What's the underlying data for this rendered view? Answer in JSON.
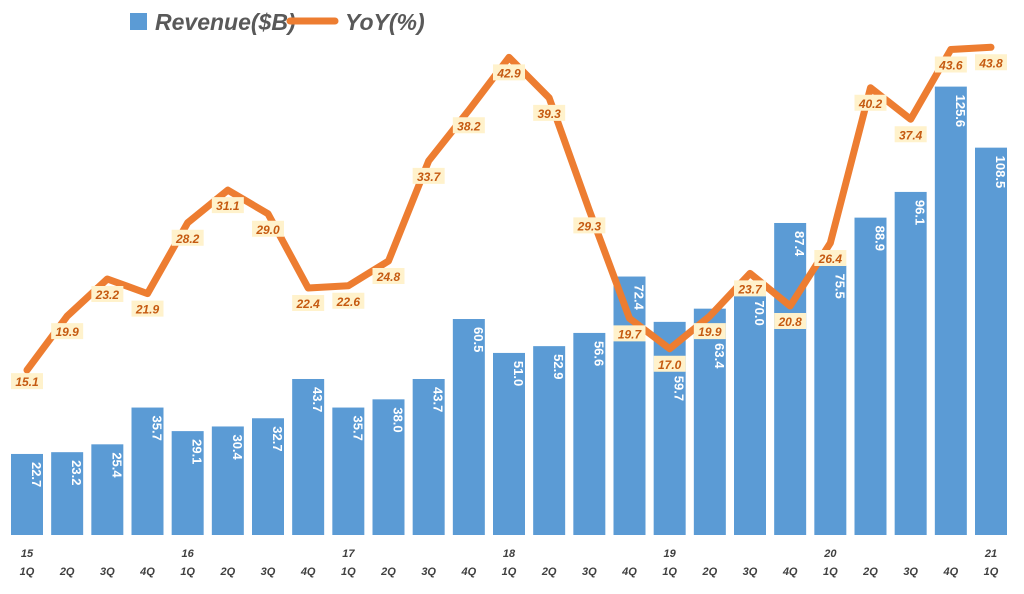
{
  "chart_data": {
    "type": "bar+line",
    "categories": [
      "15 1Q",
      "2Q",
      "3Q",
      "4Q",
      "16 1Q",
      "2Q",
      "3Q",
      "4Q",
      "17 1Q",
      "2Q",
      "3Q",
      "4Q",
      "18 1Q",
      "2Q",
      "3Q",
      "4Q",
      "19 1Q",
      "2Q",
      "3Q",
      "4Q",
      "20 1Q",
      "2Q",
      "3Q",
      "4Q",
      "21 1Q"
    ],
    "x_years": [
      "15",
      "",
      "",
      "",
      "16",
      "",
      "",
      "",
      "17",
      "",
      "",
      "",
      "18",
      "",
      "",
      "",
      "19",
      "",
      "",
      "",
      "20",
      "",
      "",
      "",
      "21"
    ],
    "x_quarters": [
      "1Q",
      "2Q",
      "3Q",
      "4Q",
      "1Q",
      "2Q",
      "3Q",
      "4Q",
      "1Q",
      "2Q",
      "3Q",
      "4Q",
      "1Q",
      "2Q",
      "3Q",
      "4Q",
      "1Q",
      "2Q",
      "3Q",
      "4Q",
      "1Q",
      "2Q",
      "3Q",
      "4Q",
      "1Q"
    ],
    "series": [
      {
        "name": "Revenue($B)",
        "type": "bar",
        "color": "#5b9bd5",
        "axis": "primary",
        "values": [
          22.7,
          23.2,
          25.4,
          35.7,
          29.1,
          30.4,
          32.7,
          43.7,
          35.7,
          38.0,
          43.7,
          60.5,
          51.0,
          52.9,
          56.6,
          72.4,
          59.7,
          63.4,
          70.0,
          87.4,
          75.5,
          88.9,
          96.1,
          125.6,
          108.5
        ]
      },
      {
        "name": "YoY(%)",
        "type": "line",
        "color": "#ed7d31",
        "axis": "secondary",
        "values": [
          15.1,
          19.9,
          23.2,
          21.9,
          28.2,
          31.1,
          29.0,
          22.4,
          22.6,
          24.8,
          33.7,
          38.2,
          42.9,
          39.3,
          29.3,
          19.7,
          17.0,
          19.9,
          23.7,
          20.8,
          26.4,
          40.2,
          37.4,
          43.6,
          43.8
        ]
      }
    ],
    "legend": "top",
    "grid": false,
    "label_box_color": "#fff2cc"
  }
}
